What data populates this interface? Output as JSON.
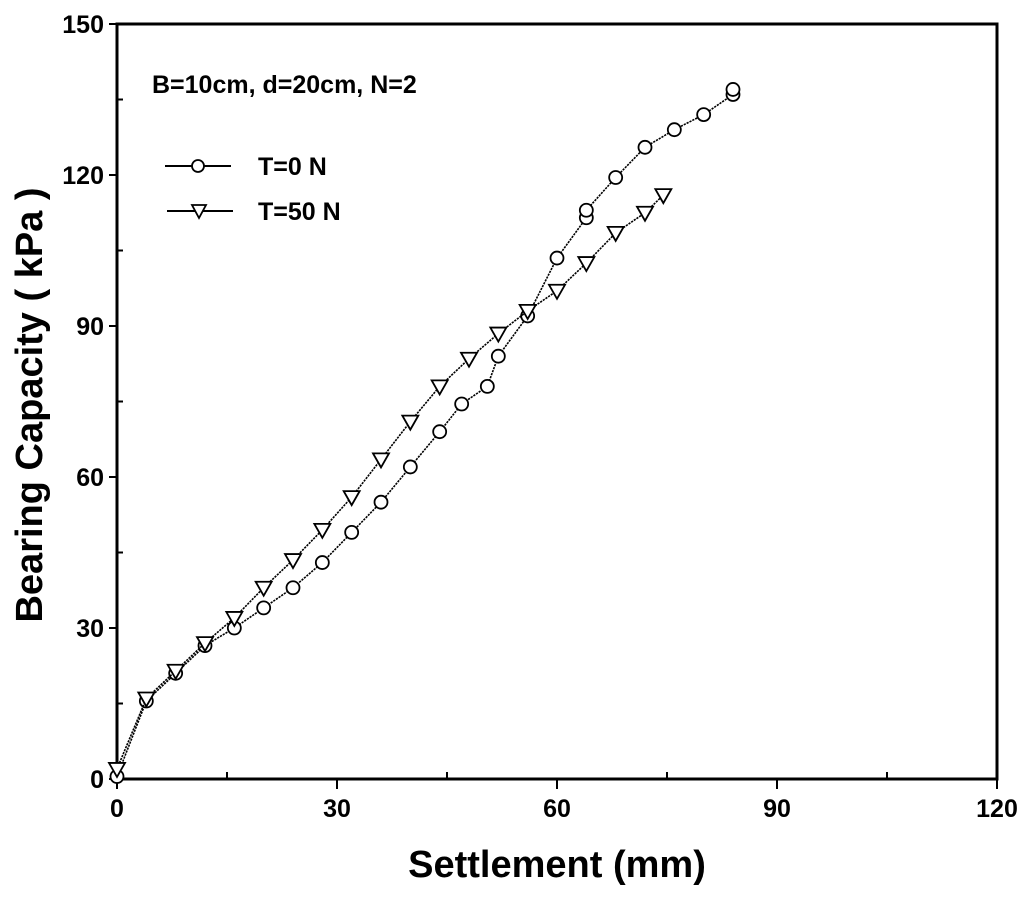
{
  "chart_data": {
    "type": "line",
    "title": "",
    "annotation": "B=10cm, d=20cm, N=2",
    "xlabel": "Settlement (mm)",
    "ylabel": "Bearing Capacity ( kPa )",
    "xlim": [
      0,
      120
    ],
    "ylim": [
      0,
      150
    ],
    "xticks": [
      0,
      30,
      60,
      90,
      120
    ],
    "yticks": [
      0,
      30,
      60,
      90,
      120,
      150
    ],
    "x_minor_step": 15,
    "y_minor_step": 15,
    "grid": false,
    "legend_position": "upper-left",
    "series": [
      {
        "name": "T=0 N",
        "marker": "circle",
        "points": [
          [
            0,
            0.5
          ],
          [
            4,
            15.5
          ],
          [
            8,
            21
          ],
          [
            12,
            26.5
          ],
          [
            16,
            30
          ],
          [
            20,
            34
          ],
          [
            24,
            38
          ],
          [
            28,
            43
          ],
          [
            32,
            49
          ],
          [
            36,
            55
          ],
          [
            40,
            62
          ],
          [
            44,
            69
          ],
          [
            47,
            74.5
          ],
          [
            50.5,
            78
          ],
          [
            52,
            84
          ],
          [
            56,
            92
          ],
          [
            60,
            103.5
          ],
          [
            64,
            111.5
          ],
          [
            64,
            113
          ],
          [
            68,
            119.5
          ],
          [
            72,
            125.5
          ],
          [
            76,
            129
          ],
          [
            80,
            132
          ],
          [
            84,
            136
          ],
          [
            84,
            137
          ]
        ]
      },
      {
        "name": "T=50 N",
        "marker": "triangle-down",
        "points": [
          [
            0,
            2
          ],
          [
            4,
            16
          ],
          [
            8,
            21.5
          ],
          [
            12,
            27
          ],
          [
            16,
            32
          ],
          [
            20,
            38
          ],
          [
            24,
            43.5
          ],
          [
            28,
            49.5
          ],
          [
            32,
            56
          ],
          [
            36,
            63.5
          ],
          [
            40,
            71
          ],
          [
            44,
            78
          ],
          [
            48,
            83.5
          ],
          [
            52,
            88.5
          ],
          [
            56,
            93
          ],
          [
            60,
            97
          ],
          [
            64,
            102.5
          ],
          [
            68,
            108.5
          ],
          [
            72,
            112.5
          ],
          [
            74.5,
            116
          ]
        ]
      }
    ]
  },
  "legend": {
    "items": [
      {
        "label": "T=0 N",
        "marker": "circle"
      },
      {
        "label": "T=50 N",
        "marker": "triangle-down"
      }
    ]
  },
  "colors": {
    "line": "#000000",
    "marker_fill": "#ffffff",
    "background": "#ffffff"
  }
}
